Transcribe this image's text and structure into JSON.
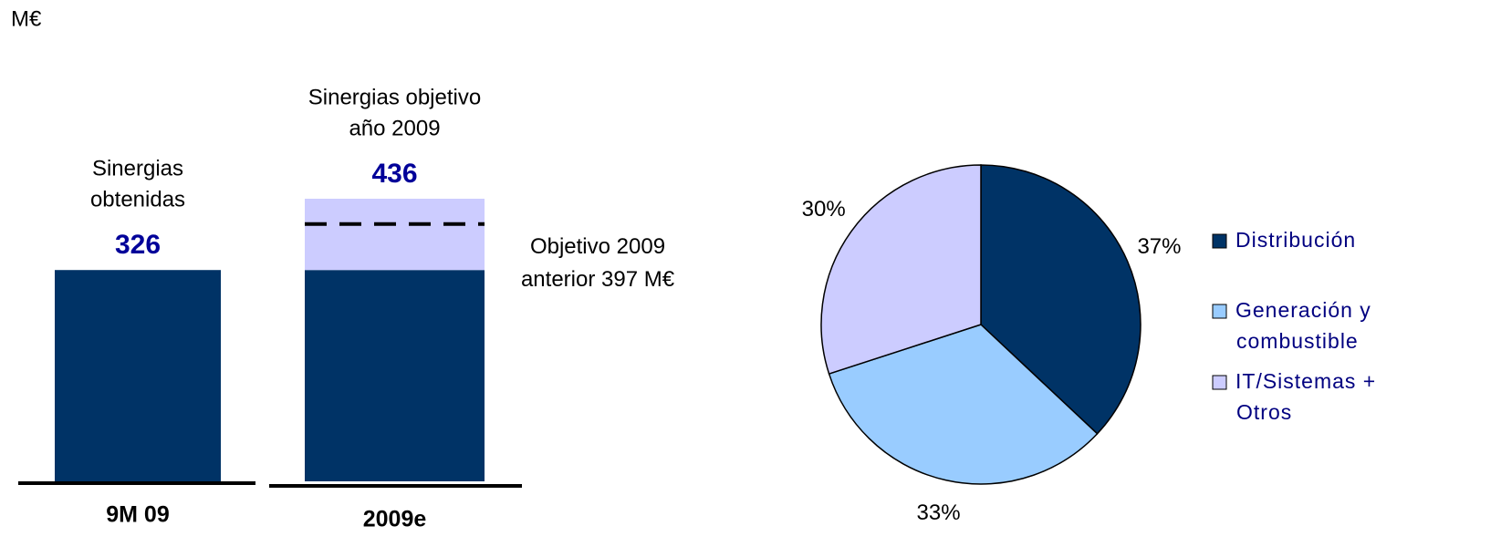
{
  "unit": "M€",
  "chart_data": [
    {
      "type": "bar",
      "categories": [
        "9M 09",
        "2009e"
      ],
      "category_notes": [
        [
          "Sinergias",
          "obtenidas"
        ],
        [
          "Sinergias objetivo",
          "año 2009"
        ]
      ],
      "series": [
        {
          "color": "#003366",
          "values": [
            326,
            326
          ]
        },
        {
          "color": "#ccccff",
          "values": [
            null,
            110
          ]
        }
      ],
      "totals": [
        326,
        436
      ],
      "reference": {
        "value": 397,
        "label": [
          "Objetivo 2009",
          "anterior 397 M€"
        ]
      }
    },
    {
      "type": "pie",
      "categories": [
        [
          "Distribución"
        ],
        [
          "Generación y",
          "combustible"
        ],
        [
          "IT/Sistemas +",
          "Otros"
        ]
      ],
      "values": [
        37,
        33,
        30
      ],
      "value_labels": [
        "37%",
        "33%",
        "30%"
      ],
      "colors": [
        "#003366",
        "#99ccff",
        "#ccccff"
      ]
    }
  ]
}
